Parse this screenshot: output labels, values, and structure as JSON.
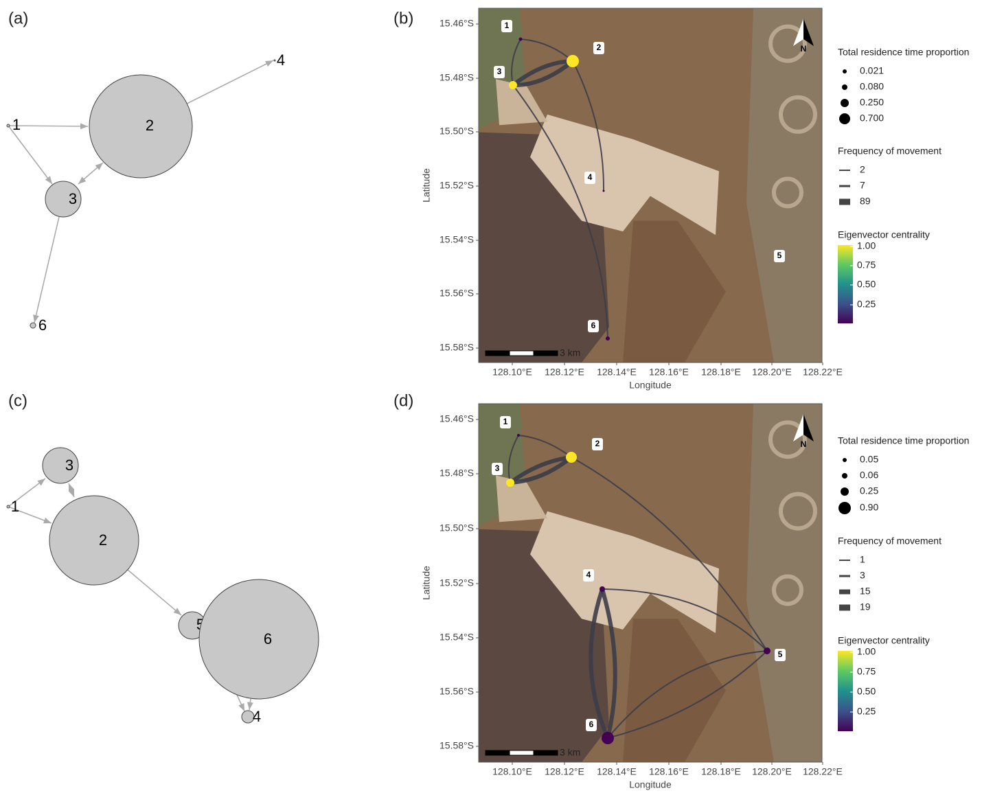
{
  "panels": [
    {
      "label": "(a)",
      "nodes": [
        "1",
        "2",
        "3",
        "4",
        "6"
      ]
    },
    {
      "label": "(b)",
      "x_label": "Longitude",
      "y_label": "Latitude",
      "xticks": [
        "128.10°E",
        "128.12°E",
        "128.14°E",
        "128.16°E",
        "128.18°E",
        "128.20°E",
        "128.22°E"
      ],
      "yticks": [
        "15.46°S",
        "15.48°S",
        "15.50°S",
        "15.52°S",
        "15.54°S",
        "15.56°S",
        "15.58°S"
      ],
      "nodes": [
        "1",
        "2",
        "3",
        "4",
        "5",
        "6"
      ],
      "scale_bar": "3 km",
      "north": "N",
      "legend": {
        "size_title": "Total residence time proportion",
        "size_items": [
          "0.021",
          "0.080",
          "0.250",
          "0.700"
        ],
        "width_title": "Frequency of movement",
        "width_items": [
          "2",
          "7",
          "89"
        ],
        "color_title": "Eigenvector centrality",
        "color_ticks": [
          "1.00",
          "0.75",
          "0.50",
          "0.25"
        ]
      }
    },
    {
      "label": "(c)",
      "nodes": [
        "3",
        "1",
        "2",
        "5",
        "6",
        "4"
      ]
    },
    {
      "label": "(d)",
      "x_label": "Longitude",
      "y_label": "Latitude",
      "xticks": [
        "128.10°E",
        "128.12°E",
        "128.14°E",
        "128.16°E",
        "128.18°E",
        "128.20°E",
        "128.22°E"
      ],
      "yticks": [
        "15.46°S",
        "15.48°S",
        "15.50°S",
        "15.52°S",
        "15.54°S",
        "15.56°S",
        "15.58°S"
      ],
      "nodes": [
        "1",
        "2",
        "3",
        "4",
        "5",
        "6"
      ],
      "scale_bar": "3 km",
      "north": "N",
      "legend": {
        "size_title": "Total residence time proportion",
        "size_items": [
          "0.05",
          "0.06",
          "0.25",
          "0.90"
        ],
        "width_title": "Frequency of movement",
        "width_items": [
          "1",
          "3",
          "15",
          "19"
        ],
        "color_title": "Eigenvector centrality",
        "color_ticks": [
          "1.00",
          "0.75",
          "0.50",
          "0.25"
        ]
      }
    }
  ]
}
